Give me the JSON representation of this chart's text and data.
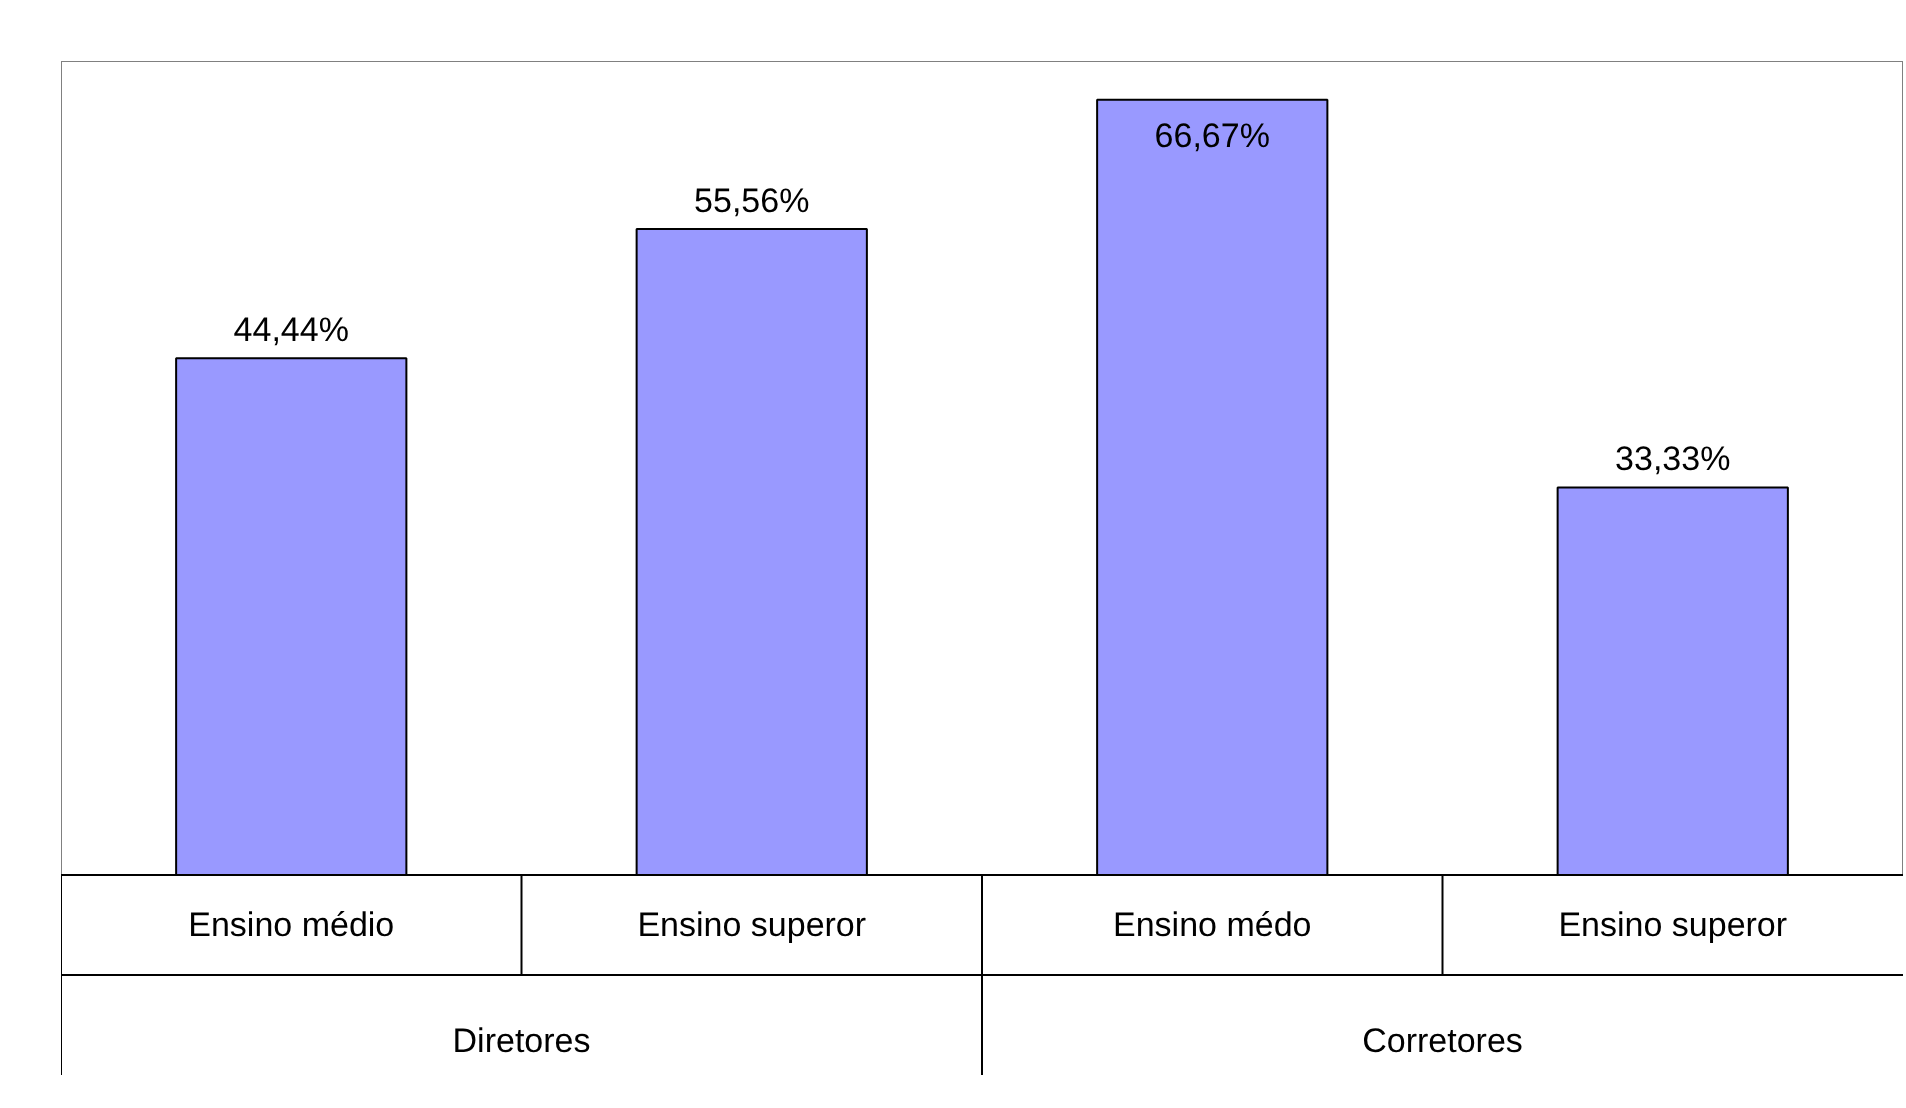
{
  "chart_data": {
    "type": "bar",
    "categories": [
      "Ensino médio",
      "Ensino superor",
      "Ensino médo",
      "Ensino superor"
    ],
    "values": [
      44.44,
      55.56,
      66.67,
      33.33
    ],
    "value_labels": [
      "44,44%",
      "55,56%",
      "66,67%",
      "33,33%"
    ],
    "color": "#9999ff",
    "ylim": [
      0,
      70
    ],
    "annotations": [
      "Diretores",
      "Corretores"
    ],
    "grid": false
  }
}
